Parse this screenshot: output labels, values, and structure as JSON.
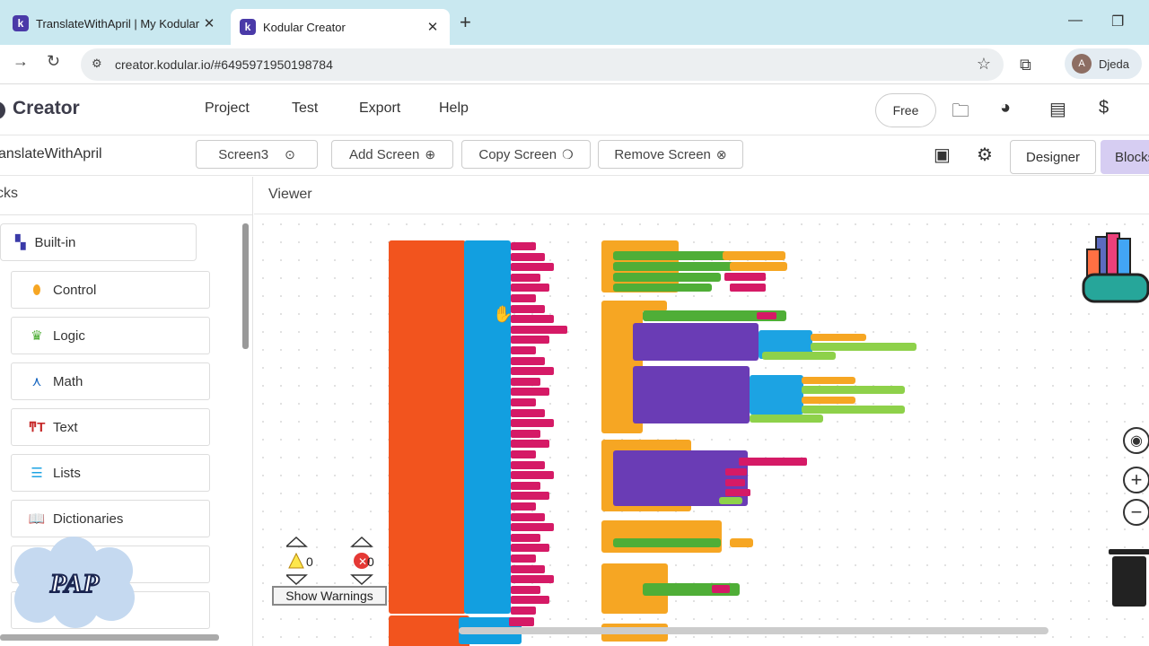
{
  "browser": {
    "tabs": [
      {
        "title": "TranslateWithApril | My Kodular",
        "active": false
      },
      {
        "title": "Kodular Creator",
        "active": true
      }
    ],
    "new_tab": "+",
    "url": "creator.kodular.io/#6495971950198784",
    "profile_initial": "A",
    "profile_name": "Djeda"
  },
  "app": {
    "brand": "Creator",
    "menu": [
      "Project",
      "Test",
      "Export",
      "Help"
    ],
    "plan_button": "Free"
  },
  "screen_toolbar": {
    "project_name": "anslateWithApril",
    "screen_select": "Screen3",
    "add_screen": "Add Screen",
    "copy_screen": "Copy Screen",
    "remove_screen": "Remove Screen",
    "designer": "Designer",
    "blocks": "Blocks"
  },
  "blocks_panel": {
    "header": "cks",
    "builtin": "Built-in",
    "categories": [
      {
        "label": "Control",
        "icon": "control-icon",
        "color": "#f6a623"
      },
      {
        "label": "Logic",
        "icon": "logic-icon",
        "color": "#4fae37"
      },
      {
        "label": "Math",
        "icon": "math-icon",
        "color": "#1565c0"
      },
      {
        "label": "Text",
        "icon": "text-icon",
        "color": "#c62828"
      },
      {
        "label": "Lists",
        "icon": "lists-icon",
        "color": "#1ca3e3"
      },
      {
        "label": "Dictionaries",
        "icon": "dictionaries-icon",
        "color": "#283593"
      }
    ]
  },
  "viewer": {
    "header": "Viewer",
    "warnings_count": "0",
    "errors_count": "0",
    "show_warnings": "Show Warnings"
  },
  "watermark": "PAP",
  "colors": {
    "orange_block": "#f2541e",
    "list_block": "#129fe0",
    "text_block": "#d51a66",
    "event_block": "#f6a623",
    "procedure_block": "#6a3cb5",
    "blocks_tab": "#d6cdf2"
  }
}
